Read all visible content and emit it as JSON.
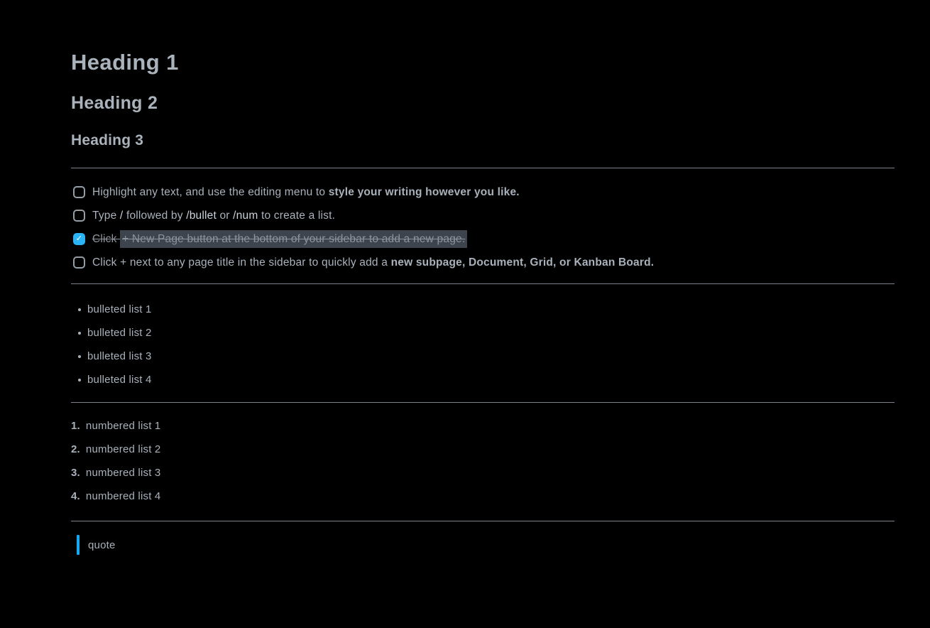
{
  "page": {
    "background": "#000000",
    "text_color": "#a9b1bb"
  },
  "headings": {
    "h1": "Heading 1",
    "h2": "Heading 2",
    "h3": "Heading 3"
  },
  "todo_list": {
    "check_glyph": "✓",
    "items": [
      {
        "checked": false,
        "segments": {
          "normal_1": "Highlight any text, and use the editing menu to ",
          "bold_1": "style your writing however you like."
        }
      },
      {
        "checked": false,
        "segments": {
          "normal_1": "Type ",
          "code_1": "/",
          "normal_2": " followed by ",
          "code_2": "/bullet",
          "normal_3": " or ",
          "code_3": "/num",
          "normal_4": " to create a list."
        }
      },
      {
        "checked": true,
        "segments": {
          "strike_1": "Click ",
          "strike_highlight_1": "+ New Page button at the bottom of your sidebar to add a new page."
        }
      },
      {
        "checked": false,
        "segments": {
          "normal_1": "Click + next to any page title in the sidebar to quickly add a ",
          "bold_1": "new subpage, Document, Grid, or Kanban Board."
        }
      }
    ]
  },
  "bulleted_list": {
    "items": [
      "bulleted list 1",
      "bulleted list 2",
      "bulleted list 3",
      "bulleted list 4"
    ]
  },
  "numbered_list": {
    "items": [
      {
        "marker": "1.",
        "text": "numbered list 1"
      },
      {
        "marker": "2.",
        "text": "numbered list 2"
      },
      {
        "marker": "3.",
        "text": "numbered list 3"
      },
      {
        "marker": "4.",
        "text": "numbered list 4"
      }
    ]
  },
  "quote": {
    "text": "quote",
    "bar_color": "#14a9f0"
  },
  "colors": {
    "accent_blue": "#2bb4f5",
    "highlight_bg": "#3e444e",
    "divider": "#7b8188",
    "muted_done_text": "#8d949d",
    "code_text": "#ccd3da"
  }
}
